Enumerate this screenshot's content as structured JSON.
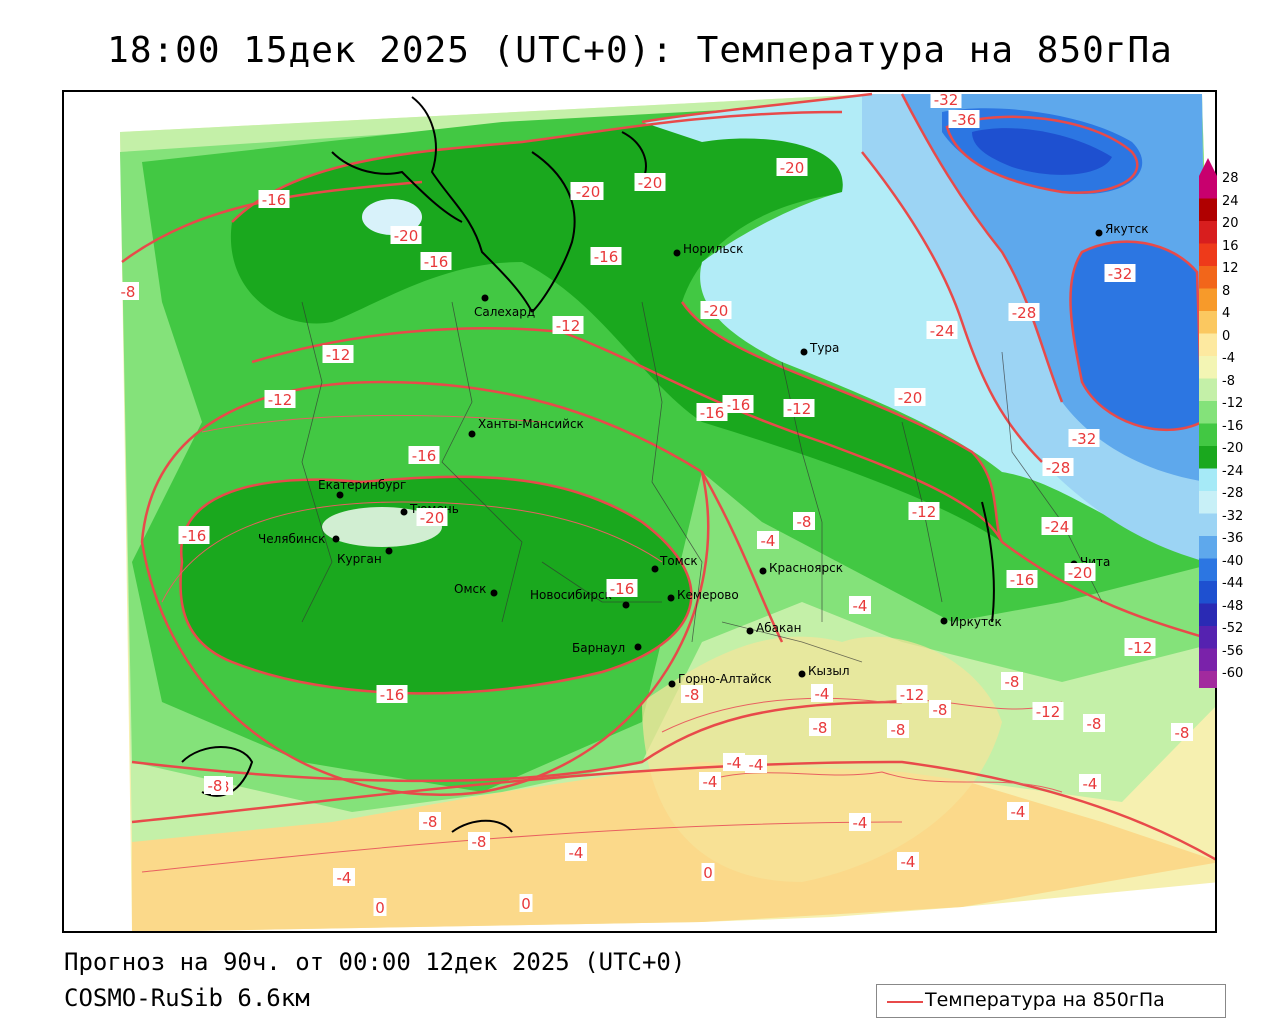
{
  "title": "18:00 15дек 2025 (UTC+0): Температура на 850гПа",
  "forecast_line": "Прогноз на 90ч. от 00:00 12дек 2025 (UTC+0)",
  "model_line": "COSMO-RuSib 6.6км",
  "legend": {
    "label": "Температура на 850гПа",
    "line_color": "#e84a4a"
  },
  "colorbar": {
    "ticks": [
      "28",
      "24",
      "20",
      "16",
      "12",
      "8",
      "4",
      "0",
      "-4",
      "-8",
      "-12",
      "-16",
      "-20",
      "-24",
      "-28",
      "-32",
      "-36",
      "-40",
      "-44",
      "-48",
      "-52",
      "-56",
      "-60"
    ],
    "colors": [
      "#c8006e",
      "#b00000",
      "#d81e1e",
      "#ee3a1a",
      "#f2661a",
      "#f79a2a",
      "#fbc860",
      "#fde9a0",
      "#f3f5b4",
      "#c4f0a8",
      "#84e27a",
      "#42c843",
      "#1aa81e",
      "#a6eaf7",
      "#c8f0f7",
      "#9cd4f4",
      "#5ea8ec",
      "#2c76e2",
      "#1e50d0",
      "#2a2ab4",
      "#5522b0",
      "#7a22aa",
      "#a22a9e"
    ]
  },
  "cities": [
    {
      "name": "Якутск"
    },
    {
      "name": "Норильск"
    },
    {
      "name": "Тура"
    },
    {
      "name": "Салехард"
    },
    {
      "name": "Ханты-Мансийск"
    },
    {
      "name": "Екатеринбург"
    },
    {
      "name": "Тюмень"
    },
    {
      "name": "Челябинск"
    },
    {
      "name": "Курган"
    },
    {
      "name": "Омск"
    },
    {
      "name": "Новосибирск"
    },
    {
      "name": "Томск"
    },
    {
      "name": "Кемерово"
    },
    {
      "name": "Барнаул"
    },
    {
      "name": "Красноярск"
    },
    {
      "name": "Абакан"
    },
    {
      "name": "Иркутск"
    },
    {
      "name": "Кызыл"
    },
    {
      "name": "Горно-Алтайск"
    },
    {
      "name": "Чита"
    }
  ],
  "isotherm_labels": [
    "-32",
    "-36",
    "-20",
    "-20",
    "-16",
    "-20",
    "-16",
    "-16",
    "-20",
    "-20",
    "-8",
    "-12",
    "-12",
    "-12",
    "-24",
    "-28",
    "-32",
    "-32",
    "-28",
    "-24",
    "-20",
    "-16",
    "-12",
    "-16",
    "-16",
    "-20",
    "-16",
    "-16",
    "-20",
    "-12",
    "-8",
    "-4",
    "-16",
    "-16",
    "-8",
    "-4",
    "-12",
    "-8",
    "-12",
    "-8",
    "-4",
    "-8",
    "-8",
    "-8",
    "-4",
    "-4",
    "-4",
    "-4",
    "-4",
    "-8",
    "-12",
    "-8",
    "-4",
    "0",
    "0",
    "0",
    "-8",
    "-8",
    "-4",
    "-4",
    "-4",
    "-8",
    "-20"
  ]
}
